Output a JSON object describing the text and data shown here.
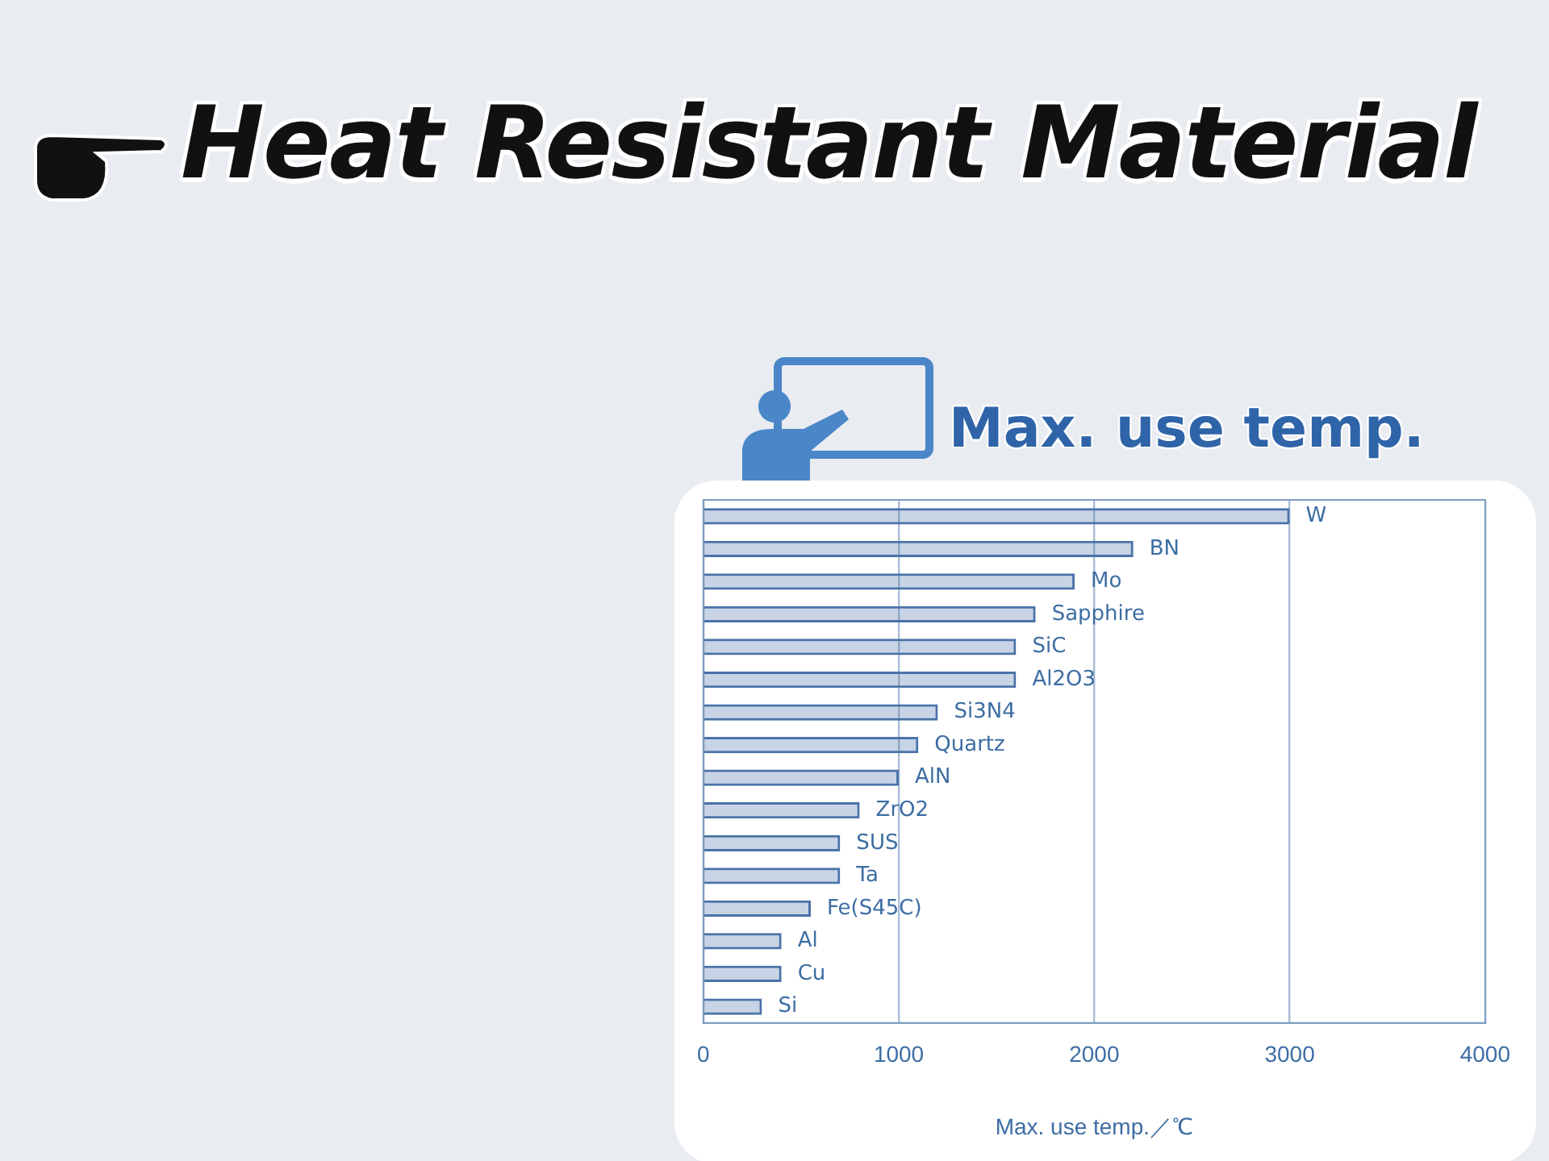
{
  "chart_data": {
    "type": "bar",
    "orientation": "horizontal",
    "title": "Heat Resistant Material",
    "subtitle": "Max. use temp.",
    "xlabel": "Max. use temp.／℃",
    "categories": [
      "W",
      "BN",
      "Mo",
      "Sapphire",
      "SiC",
      "Al2O3",
      "Si3N4",
      "Quartz",
      "AlN",
      "ZrO2",
      "SUS",
      "Ta",
      "Fe(S45C)",
      "Al",
      "Cu",
      "Si"
    ],
    "values": [
      3000,
      2200,
      1900,
      1700,
      1600,
      1600,
      1200,
      1100,
      1000,
      800,
      700,
      700,
      550,
      400,
      400,
      300
    ],
    "color": "#4a72a8",
    "xlim": [
      0,
      4000
    ],
    "xticks": [
      0,
      1000,
      2000,
      3000,
      4000
    ],
    "grid": "x"
  }
}
